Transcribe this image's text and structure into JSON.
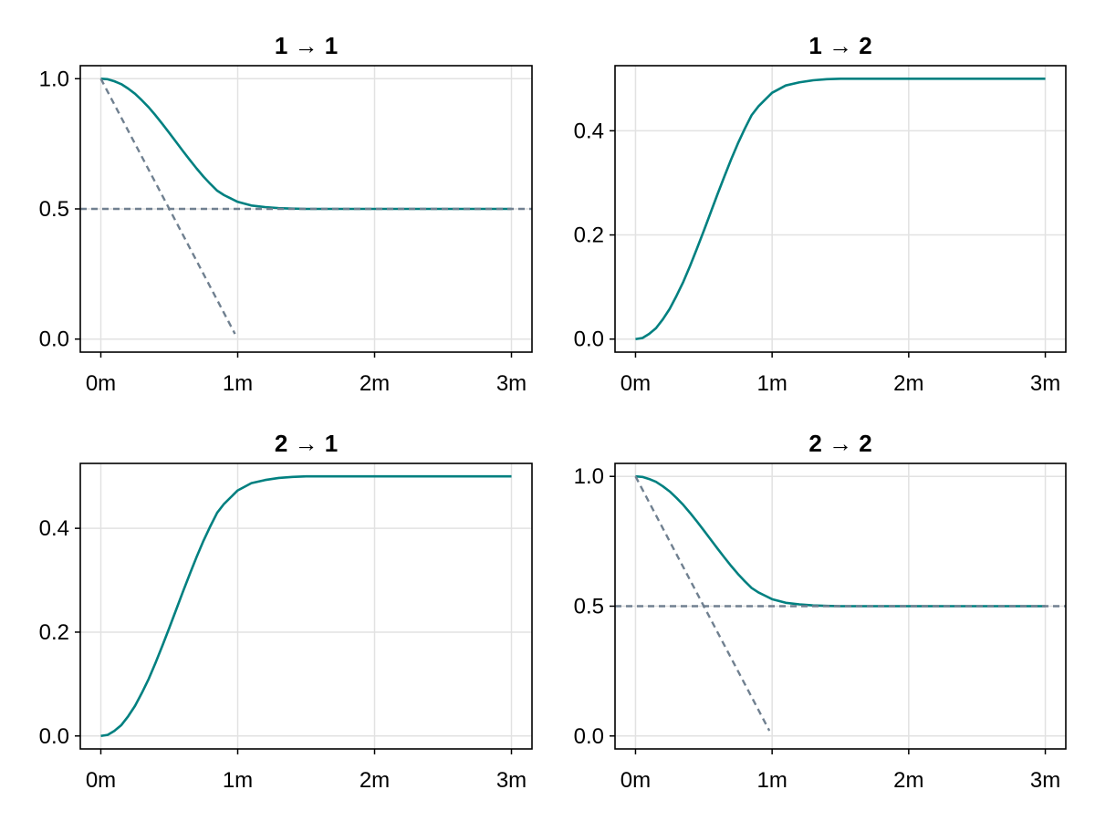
{
  "chart_data": [
    {
      "type": "line",
      "title": "1 → 1",
      "x_ticks": [
        {
          "value": 0,
          "label": "0m"
        },
        {
          "value": 1,
          "label": "1m"
        },
        {
          "value": 2,
          "label": "2m"
        },
        {
          "value": 3,
          "label": "3m"
        }
      ],
      "y_ticks": [
        {
          "value": 0,
          "label": "0.0"
        },
        {
          "value": 0.5,
          "label": "0.5"
        },
        {
          "value": 1,
          "label": "1.0"
        }
      ],
      "xlim": [
        -0.15,
        3.15
      ],
      "ylim": [
        -0.05,
        1.05
      ],
      "grid": true,
      "series": [
        {
          "color": "#008080",
          "style": "solid",
          "x": [
            0,
            0.05,
            0.1,
            0.15,
            0.2,
            0.25,
            0.3,
            0.35,
            0.4,
            0.45,
            0.5,
            0.55,
            0.6,
            0.65,
            0.7,
            0.75,
            0.8,
            0.85,
            0.9,
            0.95,
            1.0,
            1.1,
            1.2,
            1.3,
            1.4,
            1.5,
            1.75,
            2.0,
            2.5,
            3.0
          ],
          "y": [
            1.0,
            0.998,
            0.99,
            0.979,
            0.962,
            0.942,
            0.917,
            0.89,
            0.859,
            0.826,
            0.792,
            0.757,
            0.722,
            0.688,
            0.655,
            0.624,
            0.596,
            0.57,
            0.553,
            0.54,
            0.527,
            0.513,
            0.507,
            0.503,
            0.501,
            0.5,
            0.5,
            0.5,
            0.5,
            0.5
          ]
        },
        {
          "color": "#708090",
          "style": "dashed",
          "x": [
            0,
            0.98
          ],
          "y": [
            1.0,
            0.02
          ]
        },
        {
          "color": "#708090",
          "style": "dashed",
          "x": [
            -0.15,
            3.15
          ],
          "y": [
            0.5,
            0.5
          ]
        }
      ]
    },
    {
      "type": "line",
      "title": "1 → 2",
      "x_ticks": [
        {
          "value": 0,
          "label": "0m"
        },
        {
          "value": 1,
          "label": "1m"
        },
        {
          "value": 2,
          "label": "2m"
        },
        {
          "value": 3,
          "label": "3m"
        }
      ],
      "y_ticks": [
        {
          "value": 0,
          "label": "0.0"
        },
        {
          "value": 0.2,
          "label": "0.2"
        },
        {
          "value": 0.4,
          "label": "0.4"
        }
      ],
      "xlim": [
        -0.15,
        3.15
      ],
      "ylim": [
        -0.025,
        0.525
      ],
      "grid": true,
      "series": [
        {
          "color": "#008080",
          "style": "solid",
          "x": [
            0,
            0.05,
            0.1,
            0.15,
            0.2,
            0.25,
            0.3,
            0.35,
            0.4,
            0.45,
            0.5,
            0.55,
            0.6,
            0.65,
            0.7,
            0.75,
            0.8,
            0.85,
            0.9,
            0.95,
            1.0,
            1.1,
            1.2,
            1.3,
            1.4,
            1.5,
            1.75,
            2.0,
            2.5,
            3.0
          ],
          "y": [
            0.0,
            0.002,
            0.01,
            0.021,
            0.038,
            0.058,
            0.083,
            0.11,
            0.141,
            0.174,
            0.208,
            0.243,
            0.278,
            0.312,
            0.345,
            0.376,
            0.404,
            0.43,
            0.447,
            0.46,
            0.473,
            0.487,
            0.493,
            0.497,
            0.499,
            0.5,
            0.5,
            0.5,
            0.5,
            0.5
          ]
        }
      ]
    },
    {
      "type": "line",
      "title": "2 → 1",
      "x_ticks": [
        {
          "value": 0,
          "label": "0m"
        },
        {
          "value": 1,
          "label": "1m"
        },
        {
          "value": 2,
          "label": "2m"
        },
        {
          "value": 3,
          "label": "3m"
        }
      ],
      "y_ticks": [
        {
          "value": 0,
          "label": "0.0"
        },
        {
          "value": 0.2,
          "label": "0.2"
        },
        {
          "value": 0.4,
          "label": "0.4"
        }
      ],
      "xlim": [
        -0.15,
        3.15
      ],
      "ylim": [
        -0.025,
        0.525
      ],
      "grid": true,
      "series": [
        {
          "color": "#008080",
          "style": "solid",
          "x": [
            0,
            0.05,
            0.1,
            0.15,
            0.2,
            0.25,
            0.3,
            0.35,
            0.4,
            0.45,
            0.5,
            0.55,
            0.6,
            0.65,
            0.7,
            0.75,
            0.8,
            0.85,
            0.9,
            0.95,
            1.0,
            1.1,
            1.2,
            1.3,
            1.4,
            1.5,
            1.75,
            2.0,
            2.5,
            3.0
          ],
          "y": [
            0.0,
            0.002,
            0.01,
            0.021,
            0.038,
            0.058,
            0.083,
            0.11,
            0.141,
            0.174,
            0.208,
            0.243,
            0.278,
            0.312,
            0.345,
            0.376,
            0.404,
            0.43,
            0.447,
            0.46,
            0.473,
            0.487,
            0.493,
            0.497,
            0.499,
            0.5,
            0.5,
            0.5,
            0.5,
            0.5
          ]
        }
      ]
    },
    {
      "type": "line",
      "title": "2 → 2",
      "x_ticks": [
        {
          "value": 0,
          "label": "0m"
        },
        {
          "value": 1,
          "label": "1m"
        },
        {
          "value": 2,
          "label": "2m"
        },
        {
          "value": 3,
          "label": "3m"
        }
      ],
      "y_ticks": [
        {
          "value": 0,
          "label": "0.0"
        },
        {
          "value": 0.5,
          "label": "0.5"
        },
        {
          "value": 1,
          "label": "1.0"
        }
      ],
      "xlim": [
        -0.15,
        3.15
      ],
      "ylim": [
        -0.05,
        1.05
      ],
      "grid": true,
      "series": [
        {
          "color": "#008080",
          "style": "solid",
          "x": [
            0,
            0.05,
            0.1,
            0.15,
            0.2,
            0.25,
            0.3,
            0.35,
            0.4,
            0.45,
            0.5,
            0.55,
            0.6,
            0.65,
            0.7,
            0.75,
            0.8,
            0.85,
            0.9,
            0.95,
            1.0,
            1.1,
            1.2,
            1.3,
            1.4,
            1.5,
            1.75,
            2.0,
            2.5,
            3.0
          ],
          "y": [
            1.0,
            0.998,
            0.99,
            0.979,
            0.962,
            0.942,
            0.917,
            0.89,
            0.859,
            0.826,
            0.792,
            0.757,
            0.722,
            0.688,
            0.655,
            0.624,
            0.596,
            0.57,
            0.553,
            0.54,
            0.527,
            0.513,
            0.507,
            0.503,
            0.501,
            0.5,
            0.5,
            0.5,
            0.5,
            0.5
          ]
        },
        {
          "color": "#708090",
          "style": "dashed",
          "x": [
            0,
            0.98
          ],
          "y": [
            1.0,
            0.02
          ]
        },
        {
          "color": "#708090",
          "style": "dashed",
          "x": [
            -0.15,
            3.15
          ],
          "y": [
            0.5,
            0.5
          ]
        }
      ]
    }
  ]
}
